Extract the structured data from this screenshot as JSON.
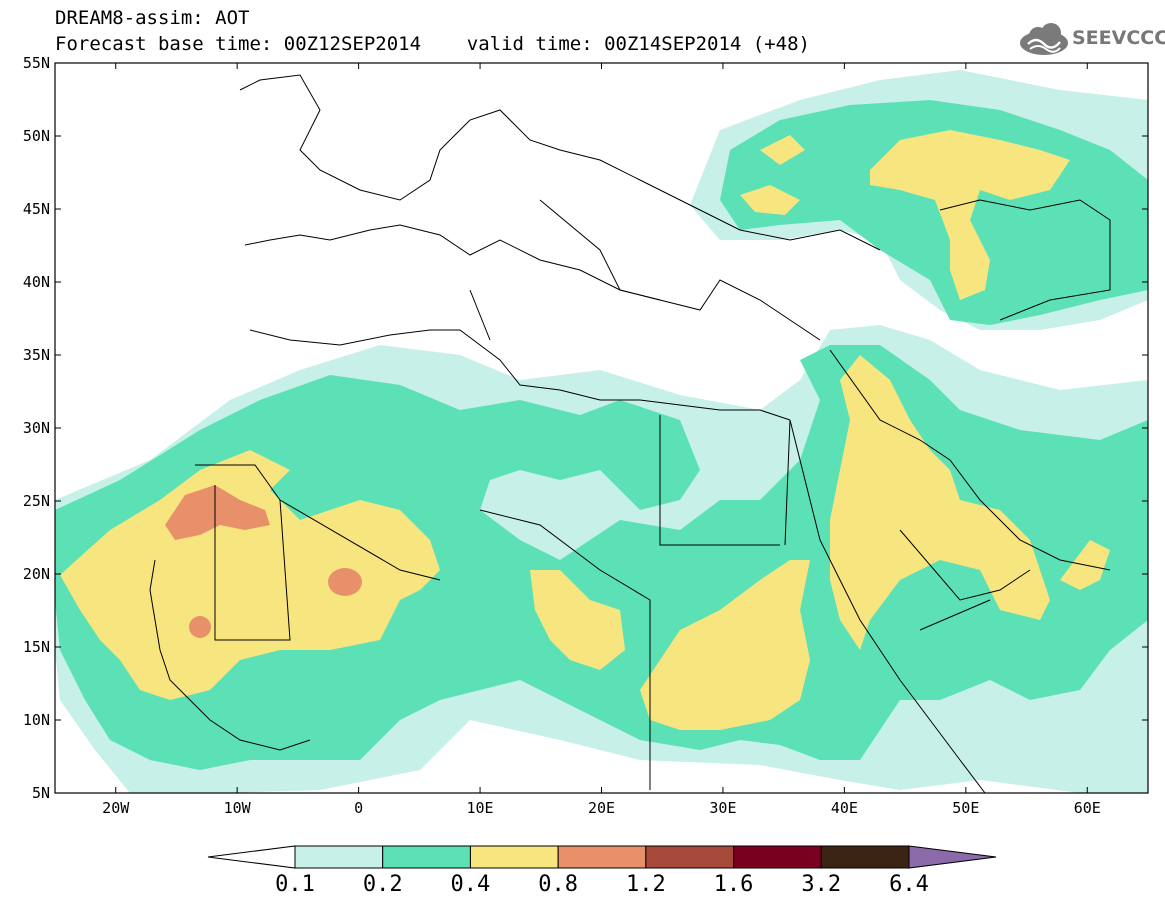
{
  "header": {
    "title_line1": "DREAM8-assim: AOT",
    "title_line2": "Forecast base time: 00Z12SEP2014    valid time: 00Z14SEP2014 (+48)",
    "logo_text": "SEEVCCC",
    "logo_icon": "cloud-icon"
  },
  "map": {
    "lon_range": [
      -25,
      65
    ],
    "lat_range": [
      5,
      55
    ],
    "lat_ticks": [
      {
        "value": 55,
        "label": "55N"
      },
      {
        "value": 50,
        "label": "50N"
      },
      {
        "value": 45,
        "label": "45N"
      },
      {
        "value": 40,
        "label": "40N"
      },
      {
        "value": 35,
        "label": "35N"
      },
      {
        "value": 30,
        "label": "30N"
      },
      {
        "value": 25,
        "label": "25N"
      },
      {
        "value": 20,
        "label": "20N"
      },
      {
        "value": 15,
        "label": "15N"
      },
      {
        "value": 10,
        "label": "10N"
      },
      {
        "value": 5,
        "label": "5N"
      }
    ],
    "lon_ticks": [
      {
        "value": -20,
        "label": "20W"
      },
      {
        "value": -10,
        "label": "10W"
      },
      {
        "value": 0,
        "label": "0"
      },
      {
        "value": 10,
        "label": "10E"
      },
      {
        "value": 20,
        "label": "20E"
      },
      {
        "value": 30,
        "label": "30E"
      },
      {
        "value": 40,
        "label": "40E"
      },
      {
        "value": 50,
        "label": "50E"
      },
      {
        "value": 60,
        "label": "60E"
      }
    ]
  },
  "colorbar": {
    "colors": [
      "#ffffff",
      "#c6f0e8",
      "#5ce1b6",
      "#f7e680",
      "#e8906a",
      "#a84a3b",
      "#7a0020",
      "#3b2414",
      "#8a6aa8"
    ],
    "levels": [
      "0.1",
      "0.2",
      "0.4",
      "0.8",
      "1.2",
      "1.6",
      "3.2",
      "6.4"
    ]
  }
}
